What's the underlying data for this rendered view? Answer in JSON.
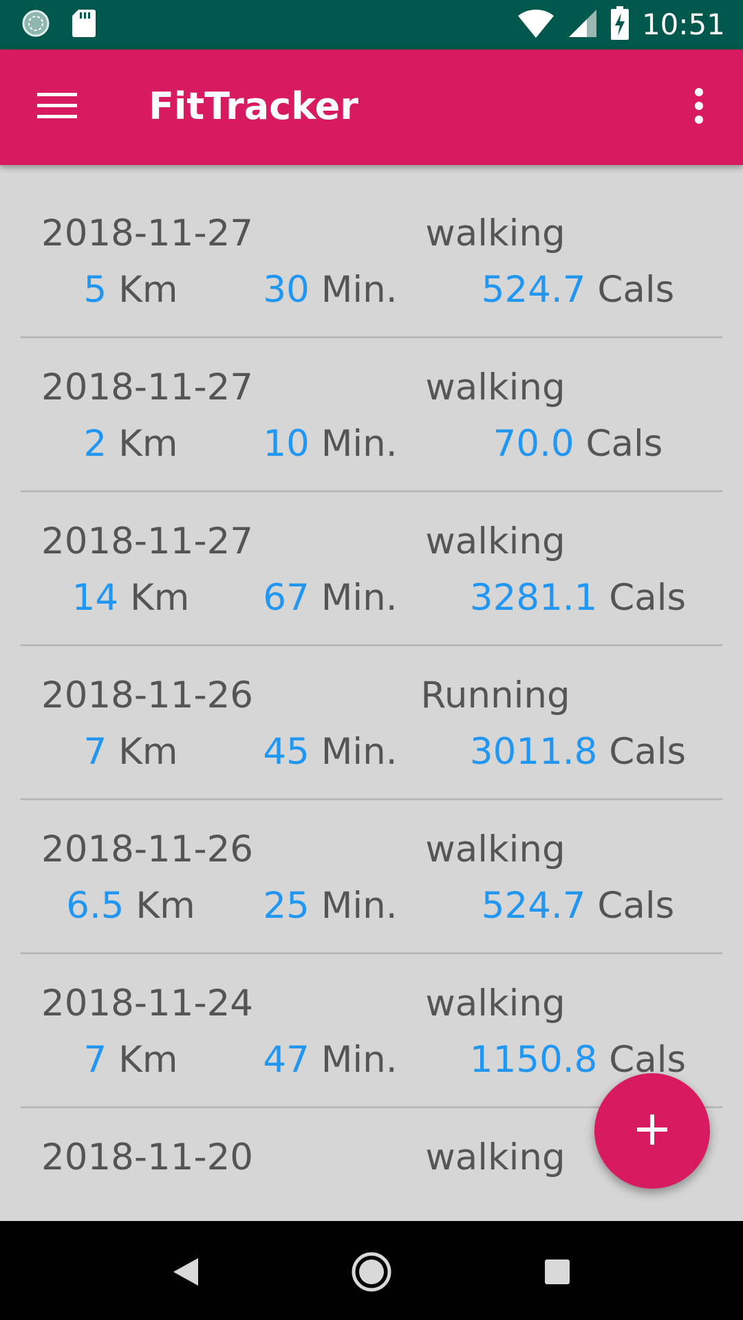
{
  "status_bar": {
    "time": "10:51",
    "icons": [
      "sync-icon",
      "sd-card-icon",
      "wifi-icon",
      "signal-icon",
      "battery-charging-icon"
    ]
  },
  "app_bar": {
    "title": "FitTracker",
    "menu_icon": "hamburger-menu-icon",
    "overflow_icon": "more-vert-icon"
  },
  "units": {
    "distance": "Km",
    "duration": "Min.",
    "calories": "Cals"
  },
  "activities": [
    {
      "date": "2018-11-27",
      "type": "walking",
      "distance": "5",
      "duration": "30",
      "calories": "524.7"
    },
    {
      "date": "2018-11-27",
      "type": "walking",
      "distance": "2",
      "duration": "10",
      "calories": "70.0"
    },
    {
      "date": "2018-11-27",
      "type": "walking",
      "distance": "14",
      "duration": "67",
      "calories": "3281.1"
    },
    {
      "date": "2018-11-26",
      "type": "Running",
      "distance": "7",
      "duration": "45",
      "calories": "3011.8"
    },
    {
      "date": "2018-11-26",
      "type": "walking",
      "distance": "6.5",
      "duration": "25",
      "calories": "524.7"
    },
    {
      "date": "2018-11-24",
      "type": "walking",
      "distance": "7",
      "duration": "47",
      "calories": "1150.8"
    },
    {
      "date": "2018-11-20",
      "type": "walking"
    }
  ],
  "fab": {
    "icon": "plus-icon"
  },
  "nav_bar": {
    "icons": [
      "back-icon",
      "home-icon",
      "recents-icon"
    ]
  },
  "colors": {
    "primary": "#d81b60",
    "status_bar": "#00574b",
    "accent_number": "#2196f3",
    "text": "#555555",
    "background": "#d6d6d6"
  }
}
